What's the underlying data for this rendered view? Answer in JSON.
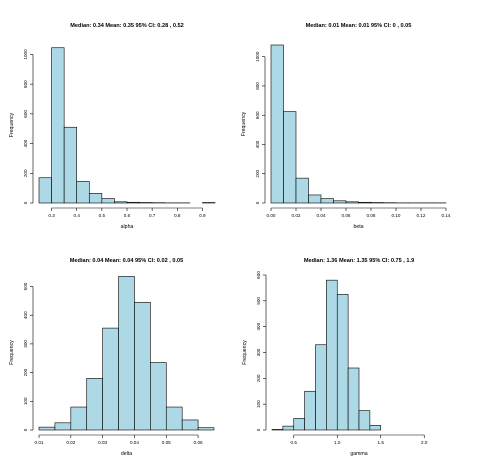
{
  "chart_data": [
    {
      "type": "bar",
      "title": "Median: 0.34 Mean: 0.35 95% CI: 0.28 ,  0.52",
      "xlabel": "alpha",
      "ylabel": "Frequency",
      "bin_width": 0.05,
      "x_start": 0.25,
      "values": [
        170,
        1045,
        510,
        145,
        65,
        30,
        8,
        5,
        3,
        2,
        1,
        1,
        0,
        3
      ],
      "xlim": [
        0.25,
        0.95
      ],
      "ylim": [
        0,
        1050
      ],
      "x_ticks": [
        "0.3",
        "0.4",
        "0.5",
        "0.6",
        "0.7",
        "0.8",
        "0.9"
      ],
      "y_ticks": [
        "0",
        "200",
        "400",
        "600",
        "800",
        "1000"
      ],
      "bar_color": "#add8e6"
    },
    {
      "type": "bar",
      "title": "Median: 0.01 Mean: 0.01 95% CI: 0 ,  0.05",
      "xlabel": "beta",
      "ylabel": "Frequency",
      "bin_width": 0.01,
      "x_start": 0.0,
      "values": [
        1080,
        625,
        170,
        55,
        30,
        15,
        8,
        5,
        3,
        2,
        1,
        1,
        1,
        1
      ],
      "xlim": [
        0.0,
        0.14
      ],
      "ylim": [
        0,
        1080
      ],
      "x_ticks": [
        "0.00",
        "0.02",
        "0.04",
        "0.06",
        "0.08",
        "0.10",
        "0.12",
        "0.14"
      ],
      "y_ticks": [
        "0",
        "200",
        "400",
        "600",
        "800",
        "1000"
      ],
      "bar_color": "#add8e6"
    },
    {
      "type": "bar",
      "title": "Median: 0.04 Mean: 0.04 95% CI: 0.02 ,  0.05",
      "xlabel": "delta",
      "ylabel": "Frequency",
      "bin_width": 0.005,
      "x_start": 0.01,
      "values": [
        10,
        25,
        80,
        180,
        355,
        535,
        445,
        235,
        80,
        35,
        8
      ],
      "xlim": [
        0.01,
        0.065
      ],
      "ylim": [
        0,
        540
      ],
      "x_ticks": [
        "0.01",
        "0.02",
        "0.03",
        "0.04",
        "0.05",
        "0.06"
      ],
      "y_ticks": [
        "0",
        "100",
        "200",
        "300",
        "400",
        "500"
      ],
      "bar_color": "#add8e6"
    },
    {
      "type": "bar",
      "title": "Median: 1.36 Mean: 1.35 95% CI: 0.75 ,  1.9",
      "xlabel": "gamma",
      "ylabel": "Frequency",
      "bin_width": 0.125,
      "x_start": 0.25,
      "values": [
        2,
        15,
        45,
        150,
        330,
        580,
        525,
        240,
        75,
        18
      ],
      "xlim": [
        0.25,
        2.25
      ],
      "ylim": [
        0,
        600
      ],
      "x_ticks": [
        "0.5",
        "1.0",
        "1.5",
        "2.0"
      ],
      "y_ticks": [
        "0",
        "100",
        "200",
        "300",
        "400",
        "500",
        "600"
      ],
      "bar_color": "#add8e6"
    }
  ]
}
